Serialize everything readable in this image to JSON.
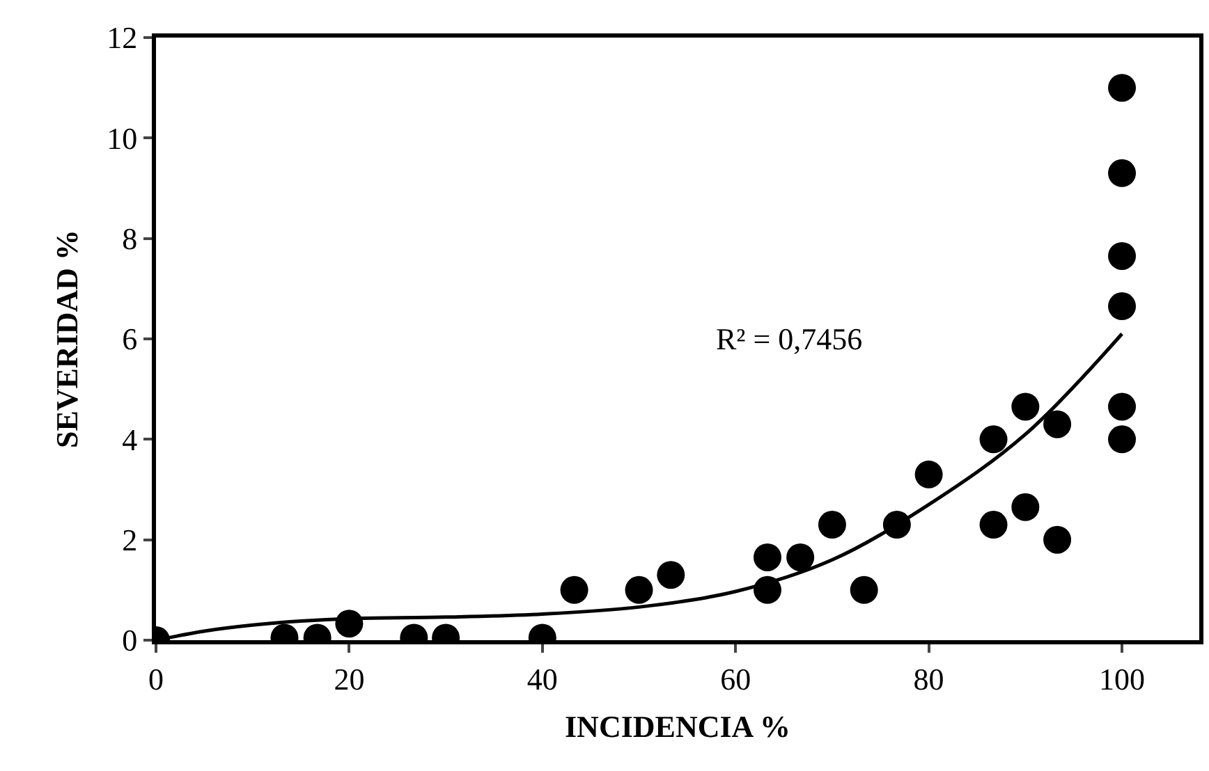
{
  "chart_data": {
    "type": "scatter",
    "xlabel": "INCIDENCIA %",
    "ylabel": "SEVERIDAD %",
    "xlim": [
      0,
      108
    ],
    "xticks": [
      0,
      20,
      40,
      60,
      80,
      100
    ],
    "ylim": [
      0,
      12
    ],
    "yticks": [
      0,
      2,
      4,
      6,
      8,
      10,
      12
    ],
    "series": [
      {
        "marker": "circle",
        "color": "#000000",
        "x": [
          0,
          13.3,
          16.7,
          20,
          26.7,
          30,
          40,
          43.3,
          50,
          53.3,
          63.3,
          63.3,
          66.7,
          70,
          73.3,
          76.7,
          80,
          86.7,
          86.7,
          90,
          90,
          93.3,
          93.3,
          100,
          100,
          100,
          100,
          100,
          100
        ],
        "values": [
          0,
          0.05,
          0.05,
          0.33,
          0.05,
          0.05,
          0.05,
          1.0,
          1.0,
          1.3,
          1.0,
          1.65,
          1.65,
          2.3,
          1.0,
          2.3,
          3.3,
          4.0,
          2.3,
          4.65,
          2.65,
          4.3,
          2.0,
          11.0,
          9.3,
          7.65,
          6.65,
          4.65,
          4.0
        ]
      },
      {
        "type": "line",
        "color": "#000000",
        "line_style": "solid",
        "x": [
          0,
          5,
          10,
          15,
          20,
          30,
          40,
          50,
          60,
          70,
          80,
          90,
          100
        ],
        "values": [
          0,
          0.18,
          0.3,
          0.38,
          0.43,
          0.46,
          0.52,
          0.66,
          0.97,
          1.6,
          2.7,
          4.1,
          6.1
        ]
      }
    ],
    "annotations": [
      "R² = 0,7456"
    ]
  }
}
